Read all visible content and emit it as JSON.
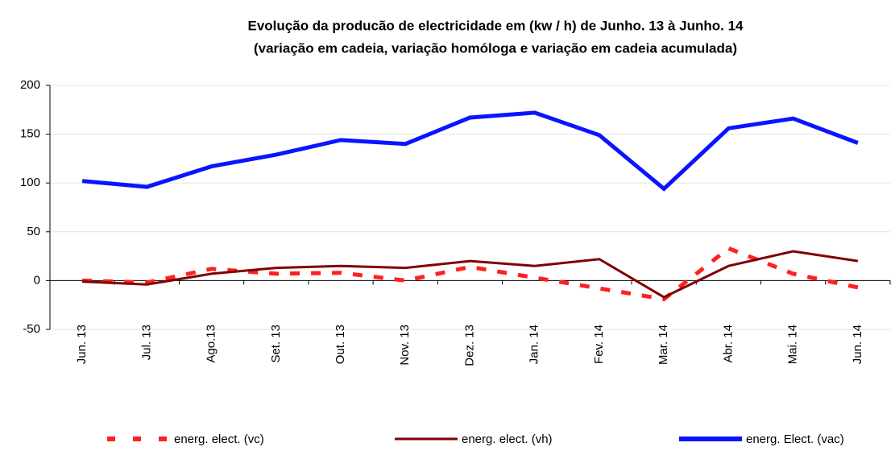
{
  "chart_data": {
    "type": "line",
    "title": "Evolução da producão de electricidade em (kw / h) de Junho. 13 à Junho. 14",
    "subtitle": "(variação em cadeia, variação homóloga e variação em cadeia acumulada)",
    "categories": [
      "Jun. 13",
      "Jul. 13",
      "Ago.13",
      "Set. 13",
      "Out. 13",
      "Nov. 13",
      "Dez. 13",
      "Jan. 14",
      "Fev. 14",
      "Mar. 14",
      "Abr. 14",
      "Mai. 14",
      "Jun. 14"
    ],
    "series": [
      {
        "name": "energ. elect. (vc)",
        "color": "#ff2020",
        "dashed": true,
        "values": [
          0,
          -2,
          12,
          7,
          8,
          0,
          14,
          3,
          -8,
          -19,
          33,
          7,
          -7
        ]
      },
      {
        "name": "energ. elect. (vh)",
        "color": "#800000",
        "dashed": false,
        "values": [
          -1,
          -4,
          7,
          13,
          15,
          13,
          20,
          15,
          22,
          -17,
          15,
          30,
          20
        ]
      },
      {
        "name": "energ. Elect. (vac)",
        "color": "#0a14ff",
        "dashed": false,
        "values": [
          102,
          96,
          117,
          129,
          144,
          140,
          167,
          172,
          149,
          94,
          156,
          166,
          141
        ]
      }
    ],
    "ylim": [
      -50,
      200
    ],
    "yticks": [
      -50,
      0,
      50,
      100,
      150,
      200
    ],
    "grid": true,
    "legend": "bottom"
  }
}
